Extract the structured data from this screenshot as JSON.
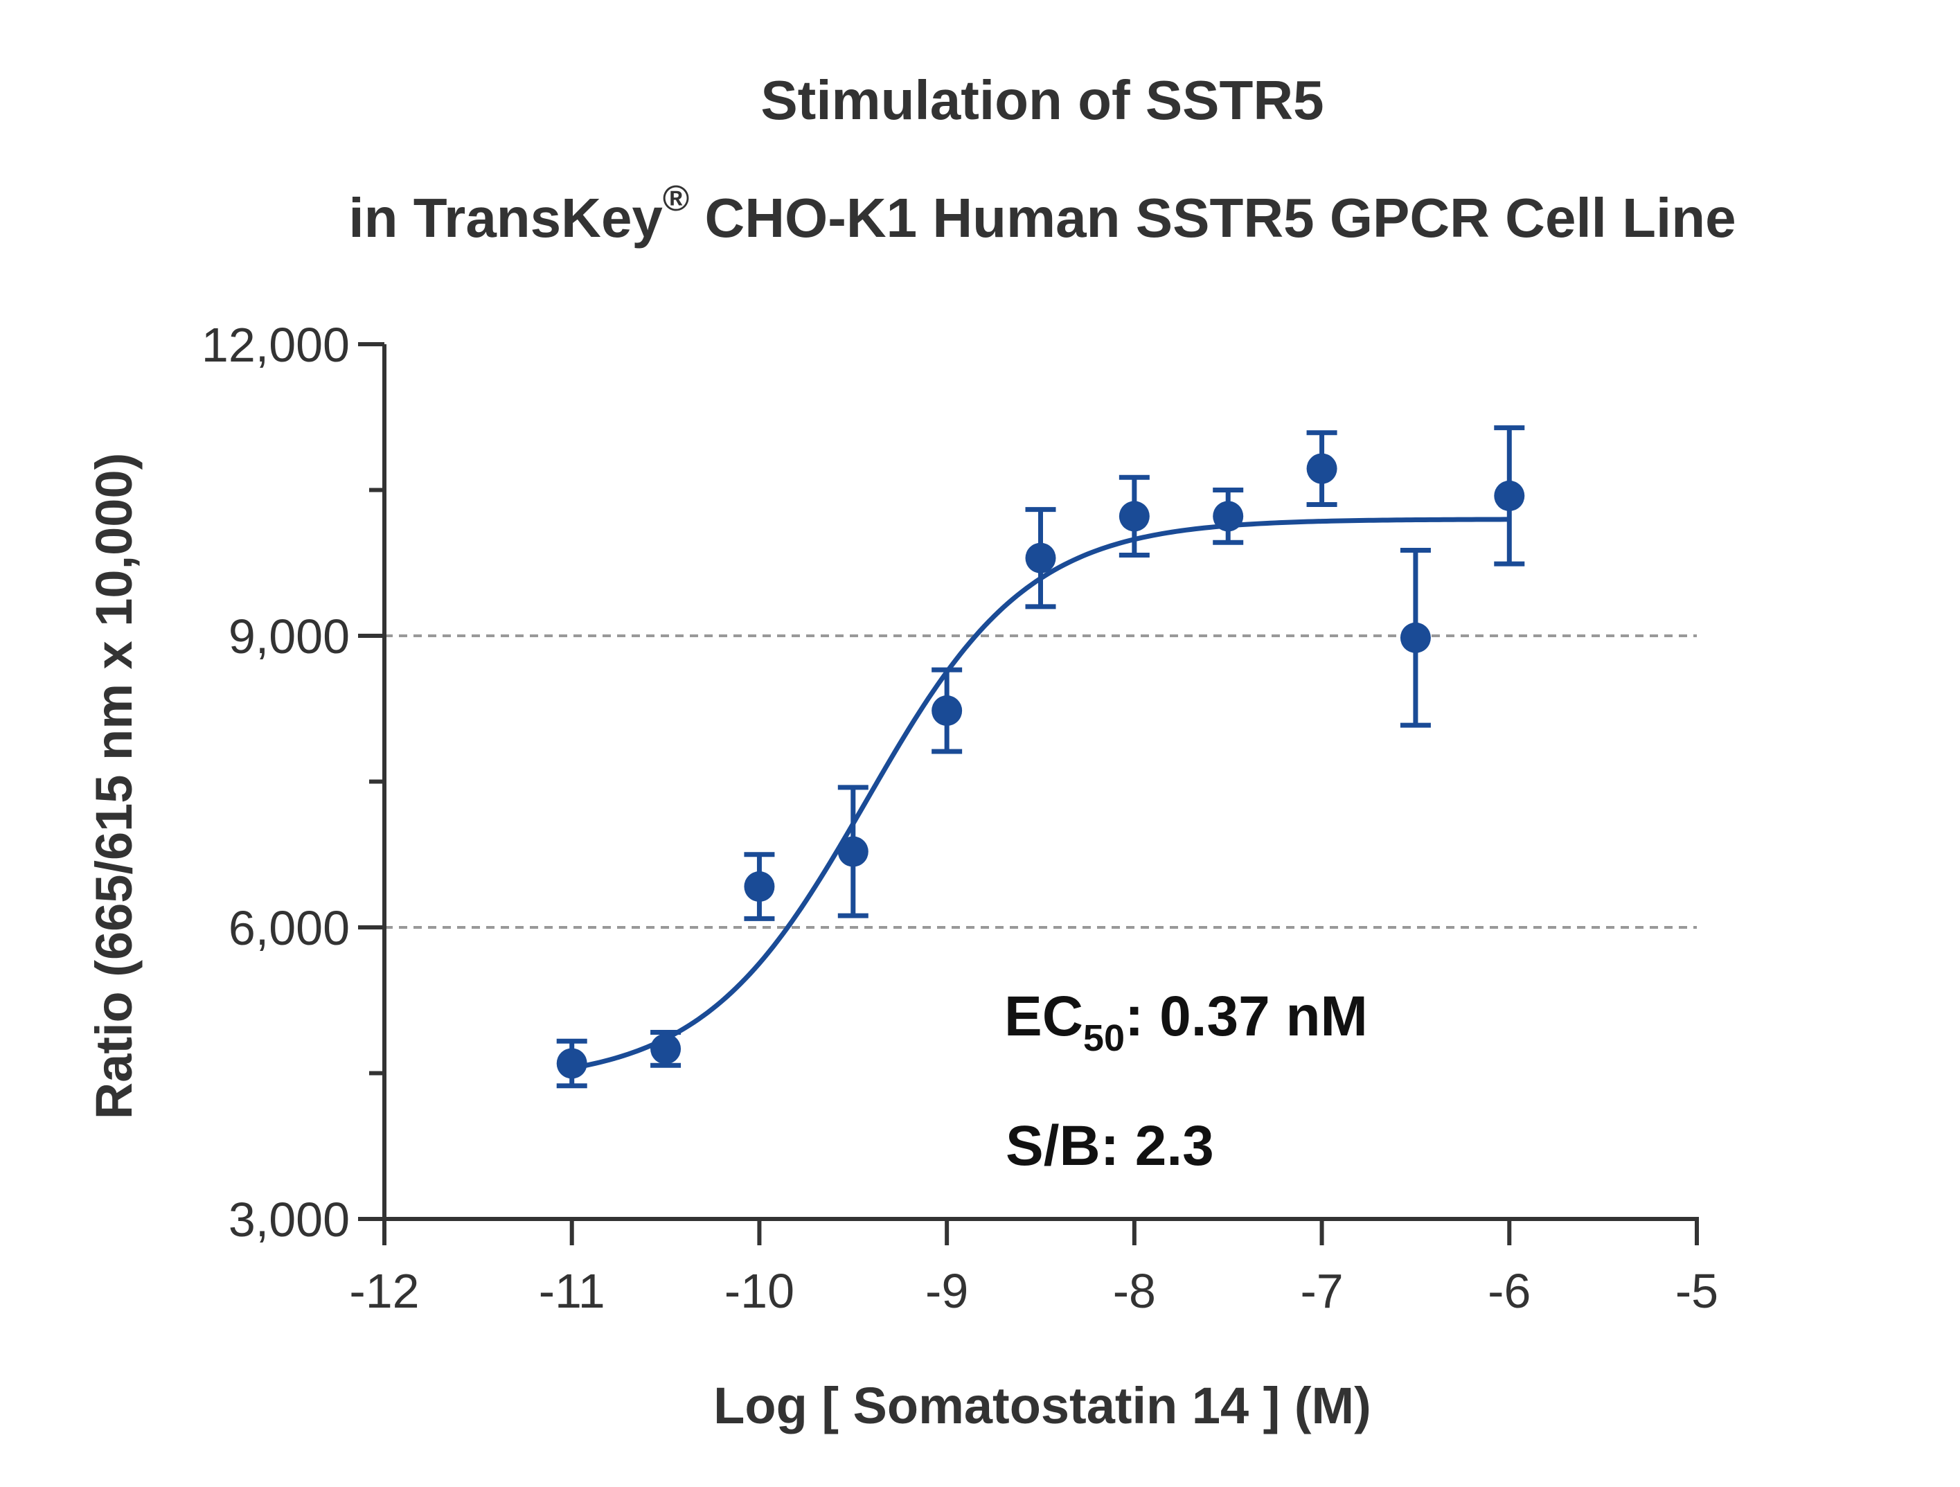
{
  "chart_data": {
    "type": "scatter",
    "title_line1": "Stimulation of  SSTR5",
    "title_line2_pre": "in TransKey",
    "title_line2_sup": "®",
    "title_line2_post": " CHO-K1 Human SSTR5 GPCR Cell Line",
    "xlabel": "Log [ Somatostatin 14 ]  (M)",
    "ylabel": "Ratio (665/615 nm x 10,000)",
    "xlim": [
      -12,
      -5
    ],
    "ylim": [
      3000,
      12000
    ],
    "x_ticks": [
      -12,
      -11,
      -10,
      -9,
      -8,
      -7,
      -6,
      -5
    ],
    "x_tick_labels": [
      "-12",
      "-11",
      "-10",
      "-9",
      "-8",
      "-7",
      "-6",
      "-5"
    ],
    "y_ticks": [
      3000,
      6000,
      9000,
      12000
    ],
    "y_tick_labels": [
      "3,000",
      "6,000",
      "9,000",
      "12,000"
    ],
    "y_minor_ticks": [
      4500,
      7500,
      10500
    ],
    "gridlines_y": [
      6000,
      9000
    ],
    "series": [
      {
        "color": "#1a4b96",
        "x": [
          -11,
          -10.5,
          -10,
          -9.5,
          -9,
          -8.5,
          -8,
          -7.5,
          -7,
          -6.5,
          -6
        ],
        "y": [
          4600,
          4750,
          6420,
          6780,
          8230,
          9800,
          10230,
          10230,
          10720,
          8980,
          10440
        ],
        "err": [
          230,
          170,
          330,
          660,
          420,
          500,
          400,
          270,
          370,
          900,
          700
        ]
      }
    ],
    "fit": {
      "type": "4PL",
      "bottom": 4400,
      "top": 10200,
      "log_ec50": -9.43,
      "hill": 1.0,
      "x_range": [
        -11,
        -6
      ]
    },
    "annotations": {
      "ec50_prefix": "EC",
      "ec50_sub": "50",
      "ec50_value": ": 0.37 nM",
      "sb": "S/B: 2.3"
    }
  }
}
